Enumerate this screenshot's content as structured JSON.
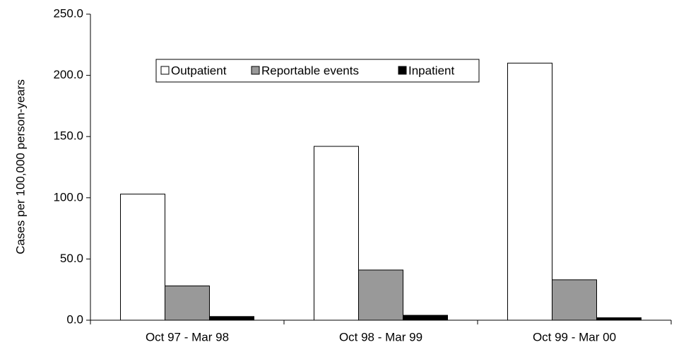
{
  "chart_data": {
    "type": "bar",
    "y_label": "Cases per 100,000 person-years",
    "categories": [
      "Oct 97 - Mar 98",
      "Oct 98 - Mar 99",
      "Oct 99 - Mar 00"
    ],
    "series": [
      {
        "name": "Outpatient",
        "color": "#ffffff",
        "values": [
          103,
          142,
          210
        ]
      },
      {
        "name": "Reportable events",
        "color": "#999999",
        "values": [
          28,
          41,
          33
        ]
      },
      {
        "name": "Inpatient",
        "color": "#000000",
        "values": [
          3,
          4,
          2
        ]
      }
    ],
    "ylim": [
      0,
      250
    ],
    "yticks": [
      {
        "value": 0,
        "label": "0.0"
      },
      {
        "value": 50,
        "label": "50.0"
      },
      {
        "value": 100,
        "label": "100.0"
      },
      {
        "value": 150,
        "label": "150.0"
      },
      {
        "value": 200,
        "label": "200.0"
      },
      {
        "value": 250,
        "label": "250.0"
      }
    ],
    "legend_position": "upper-left"
  }
}
